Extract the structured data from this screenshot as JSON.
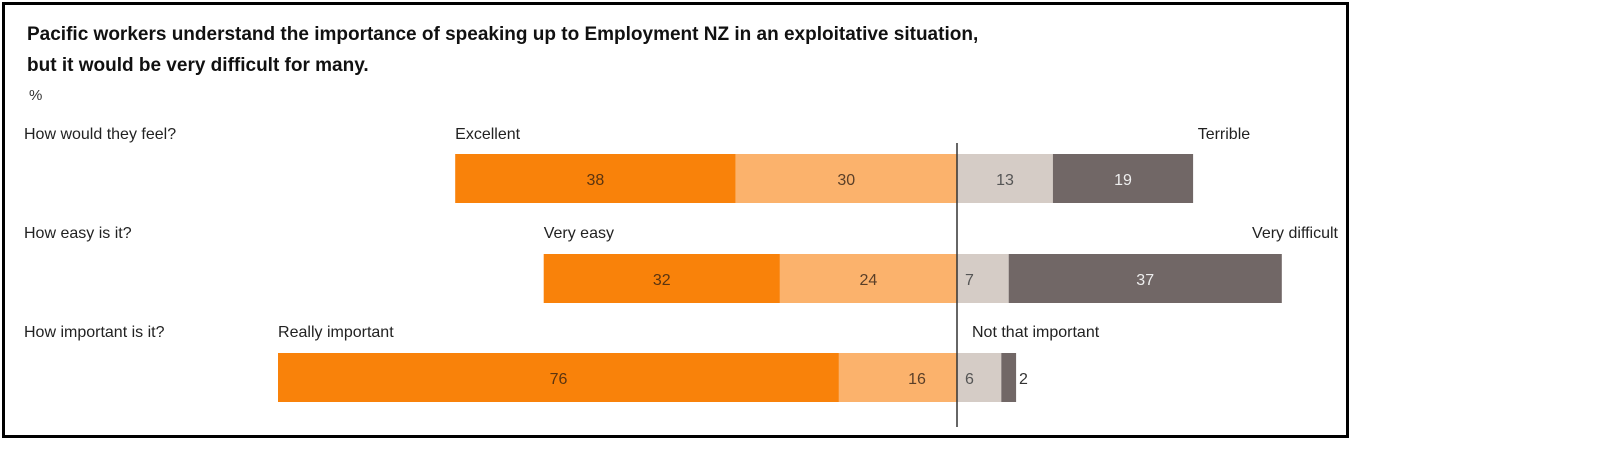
{
  "title_line1": "Pacific workers understand the importance of speaking up to Employment NZ in an exploitative situation,",
  "title_line2": "but it would be very difficult for many.",
  "unit": "%",
  "colors": {
    "positive_strong": "#F9820A",
    "positive_mild": "#FBB26C",
    "negative_mild": "#D5CCC6",
    "negative_strong": "#716766",
    "divider": "#333333"
  },
  "chart_data": {
    "type": "bar",
    "orientation": "horizontal-diverging-stacked",
    "unit": "%",
    "rows": [
      {
        "question": "How would they feel?",
        "positive_label": "Excellent",
        "negative_label": "Terrible",
        "positive": [
          38,
          30
        ],
        "negative": [
          13,
          19
        ]
      },
      {
        "question": "How easy is it?",
        "positive_label": "Very easy",
        "negative_label": "Very difficult",
        "positive": [
          32,
          24
        ],
        "negative": [
          7,
          37
        ]
      },
      {
        "question": "How important is it?",
        "positive_label": "Really important",
        "negative_label": "Not that important",
        "positive": [
          76,
          16
        ],
        "negative": [
          6,
          2
        ]
      }
    ]
  }
}
